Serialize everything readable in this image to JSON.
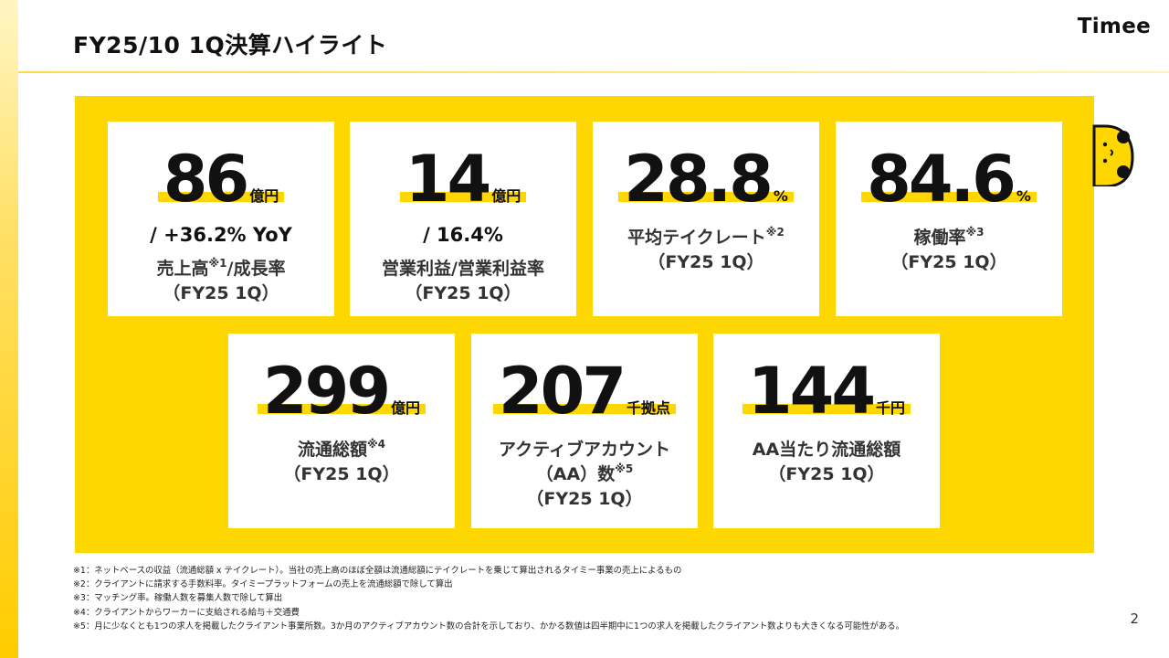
{
  "header": {
    "title": "FY25/10 1Q決算ハイライト",
    "logo": "Timee"
  },
  "cards": [
    {
      "value": "86",
      "unit": "億円",
      "subline": "/ +36.2% YoY",
      "label_main": "売上高",
      "label_note": "※1",
      "label_suffix": "/成長率",
      "period": "（FY25 1Q）"
    },
    {
      "value": "14",
      "unit": "億円",
      "subline": "/ 16.4%",
      "label_main": "営業利益/営業利益率",
      "period": "（FY25 1Q）"
    },
    {
      "value": "28.8",
      "unit": "%",
      "label_main": "平均テイクレート",
      "label_note": "※2",
      "period": "（FY25 1Q）"
    },
    {
      "value": "84.6",
      "unit": "%",
      "label_main": "稼働率",
      "label_note": "※3",
      "period": "（FY25 1Q）"
    },
    {
      "value": "299",
      "unit": "億円",
      "label_main": "流通総額",
      "label_note": "※4",
      "period": "（FY25 1Q）"
    },
    {
      "value": "207",
      "unit": "千拠点",
      "label_main": "アクティブアカウント",
      "label_line2": "（AA）数",
      "label_note": "※5",
      "period": "（FY25 1Q）"
    },
    {
      "value": "144",
      "unit": "千円",
      "label_main": "AA当たり流通総額",
      "period": "（FY25 1Q）"
    }
  ],
  "footnotes": [
    "※1：ネットベースの収益（流通総額 x テイクレート）。当社の売上高のほぼ全額は流通総額にテイクレートを乗じて算出されるタイミー事業の売上によるもの",
    "※2：クライアントに請求する手数料率。タイミープラットフォームの売上を流通総額で除して算出",
    "※3：マッチング率。稼働人数を募集人数で除して算出",
    "※4：クライアントからワーカーに支給される給与＋交通費",
    "※5：月に少なくとも1つの求人を掲載したクライアント事業所数。3か月のアクティブアカウント数の合計を示しており、かかる数値は四半期中に1つの求人を掲載したクライアント数よりも大きくなる可能性がある。"
  ],
  "page_number": "2",
  "colors": {
    "accent": "#ffd700",
    "text": "#111111"
  },
  "icons": {
    "mascot": "mascot-face-icon"
  }
}
